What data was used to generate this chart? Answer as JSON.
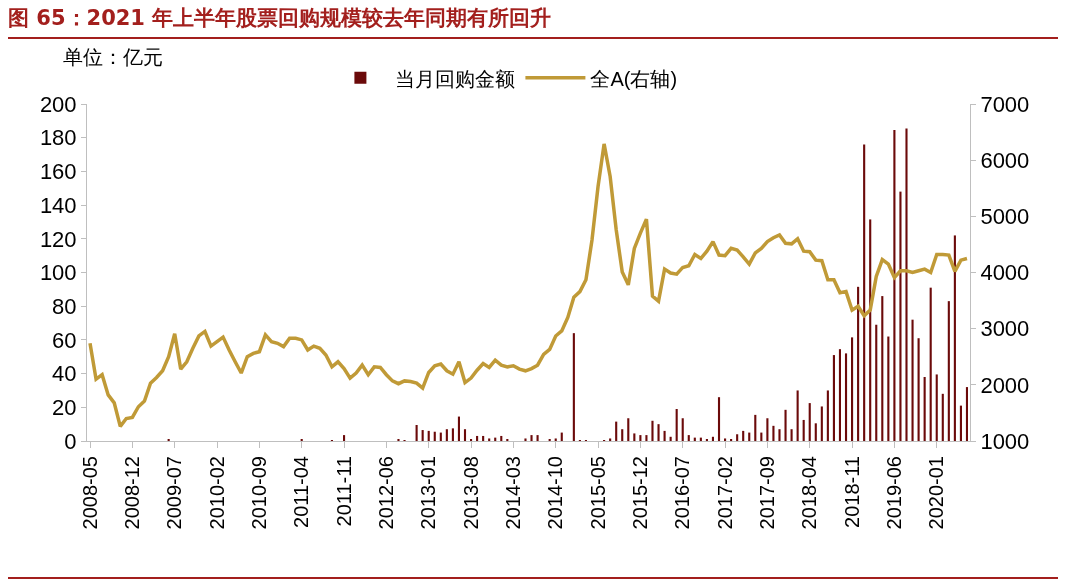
{
  "chart_data": {
    "type": "bar",
    "title": "图 65：2021 年上半年股票回购规模较去年同期有所回升",
    "annotations": [
      "单位：亿元"
    ],
    "categories": [
      "2008-05",
      null,
      null,
      null,
      null,
      null,
      null,
      "2008-12",
      null,
      null,
      null,
      null,
      null,
      null,
      "2009-07",
      null,
      null,
      null,
      null,
      null,
      null,
      "2010-02",
      null,
      null,
      null,
      null,
      null,
      null,
      "2010-09",
      null,
      null,
      null,
      null,
      null,
      null,
      "2011-04",
      null,
      null,
      null,
      null,
      null,
      null,
      "2011-11",
      null,
      null,
      null,
      null,
      null,
      null,
      "2012-06",
      null,
      null,
      null,
      null,
      null,
      null,
      "2013-01",
      null,
      null,
      null,
      null,
      null,
      null,
      "2013-08",
      null,
      null,
      null,
      null,
      null,
      null,
      "2014-03",
      null,
      null,
      null,
      null,
      null,
      null,
      "2014-10",
      null,
      null,
      null,
      null,
      null,
      null,
      "2015-05",
      null,
      null,
      null,
      null,
      null,
      null,
      "2015-12",
      null,
      null,
      null,
      null,
      null,
      null,
      "2016-07",
      null,
      null,
      null,
      null,
      null,
      null,
      "2017-02",
      null,
      null,
      null,
      null,
      null,
      null,
      "2017-09",
      null,
      null,
      null,
      null,
      null,
      null,
      "2018-04",
      null,
      null,
      null,
      null,
      null,
      null,
      "2018-11",
      null,
      null,
      null,
      null,
      null,
      null,
      "2019-06",
      null,
      null,
      null,
      null,
      null,
      null,
      "2020-01",
      null,
      null,
      null,
      null,
      null
    ],
    "series": [
      {
        "name": "当月回购金额",
        "color": "#6b0a0a",
        "values": [
          0,
          0,
          0,
          0,
          0,
          0,
          0,
          0,
          0,
          0,
          0,
          0,
          0,
          1,
          0,
          0,
          0,
          0,
          0,
          0,
          0,
          0,
          0,
          0,
          0,
          0,
          0,
          0,
          0,
          0,
          0,
          0,
          0,
          0,
          0,
          1,
          0,
          0,
          0,
          0,
          0.5,
          0,
          3.5,
          0,
          0,
          0,
          0,
          0,
          0,
          0,
          0,
          1,
          0.5,
          0,
          9.5,
          6.5,
          6,
          5.5,
          5,
          7,
          7.5,
          14.5,
          7,
          1,
          3,
          3,
          1.5,
          2,
          3,
          1,
          0,
          0,
          1.5,
          3.5,
          3.5,
          0,
          1,
          1.5,
          5,
          0,
          64,
          0.5,
          0.5,
          0,
          0,
          0.5,
          1.5,
          11.5,
          7,
          13.5,
          4.5,
          3.5,
          3.5,
          12,
          10,
          6,
          2.5,
          19,
          13.5,
          3.5,
          2,
          2,
          1,
          2.5,
          26,
          1.5,
          1,
          4,
          6,
          5,
          15.5,
          5,
          13.5,
          9,
          7,
          18.5,
          7,
          30,
          12.5,
          22.5,
          10.5,
          20.5,
          30,
          51,
          54.5,
          52,
          61.5,
          91.5,
          176,
          131.5,
          69,
          86,
          62,
          184.5,
          148,
          185.5,
          72,
          61,
          38,
          91,
          39.5,
          28,
          83,
          122,
          21,
          32
        ]
      },
      {
        "name": "全A(右轴)",
        "type": "line",
        "axis": "y2",
        "color": "#c09a37",
        "values": [
          2740,
          2100,
          2180,
          1820,
          1680,
          1260,
          1400,
          1420,
          1610,
          1710,
          2030,
          2130,
          2250,
          2500,
          2910,
          2280,
          2410,
          2650,
          2870,
          2950,
          2690,
          2770,
          2850,
          2620,
          2410,
          2210,
          2500,
          2560,
          2590,
          2890,
          2770,
          2740,
          2680,
          2830,
          2830,
          2800,
          2620,
          2690,
          2650,
          2530,
          2320,
          2410,
          2290,
          2120,
          2210,
          2350,
          2180,
          2320,
          2310,
          2180,
          2070,
          2020,
          2070,
          2060,
          2030,
          1940,
          2220,
          2340,
          2370,
          2250,
          2190,
          2410,
          2040,
          2120,
          2260,
          2380,
          2310,
          2440,
          2350,
          2320,
          2340,
          2280,
          2250,
          2290,
          2350,
          2540,
          2630,
          2870,
          2960,
          3200,
          3560,
          3660,
          3870,
          4580,
          5530,
          6290,
          5710,
          4760,
          4010,
          3780,
          4430,
          4700,
          4950,
          3580,
          3490,
          4060,
          3990,
          3970,
          4090,
          4120,
          4320,
          4250,
          4380,
          4550,
          4310,
          4300,
          4430,
          4400,
          4280,
          4150,
          4350,
          4430,
          4550,
          4620,
          4670,
          4520,
          4510,
          4600,
          4380,
          4370,
          4220,
          4210,
          3870,
          3870,
          3640,
          3660,
          3330,
          3400,
          3230,
          3330,
          3930,
          4230,
          4150,
          3910,
          4030,
          4030,
          4000,
          4030,
          4060,
          4000,
          4320,
          4320,
          4310,
          4020,
          4220,
          4250
        ]
      }
    ],
    "ylim": [
      0,
      200
    ],
    "yticks": [
      0,
      20,
      40,
      60,
      80,
      100,
      120,
      140,
      160,
      180,
      200
    ],
    "y2lim": [
      1000,
      7000
    ],
    "y2ticks": [
      1000,
      2000,
      3000,
      4000,
      5000,
      6000,
      7000
    ],
    "legend": "top",
    "grid": false
  }
}
